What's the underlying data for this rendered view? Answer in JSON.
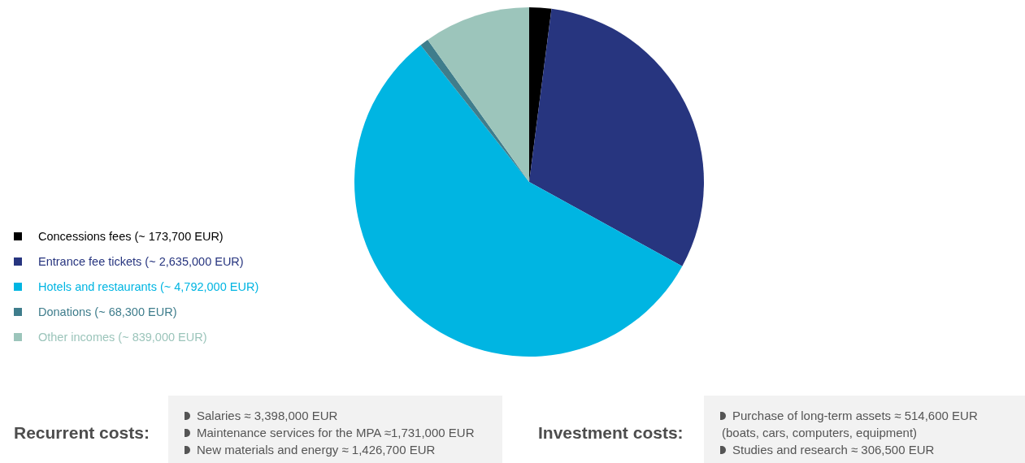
{
  "chart_data": {
    "type": "pie",
    "categories": [
      "Concessions fees (~ 173,700 EUR)",
      "Entrance fee tickets (~ 2,635,000 EUR)",
      "Hotels and restaurants (~ 4,792,000 EUR)",
      "Donations (~ 68,300 EUR)",
      "Other incomes (~ 839,000 EUR)"
    ],
    "values": [
      173700,
      2635000,
      4792000,
      68300,
      839000
    ],
    "colors": [
      "#000000",
      "#27357f",
      "#00b5e2",
      "#3f7d8c",
      "#9cc5bb"
    ],
    "legend": "left",
    "annotations": [
      "Recurrent costs:",
      "Salaries ≈ 3,398,000 EUR",
      "Maintenance services for the MPA ≈1,731,000 EUR",
      "New materials and energy ≈ 1,426,700 EUR",
      "Investment costs:",
      "Purchase of long-term assets ≈ 514,600 EUR (boats, cars, computers, equipment)",
      "Studies and research ≈ 306,500 EUR"
    ]
  }
}
